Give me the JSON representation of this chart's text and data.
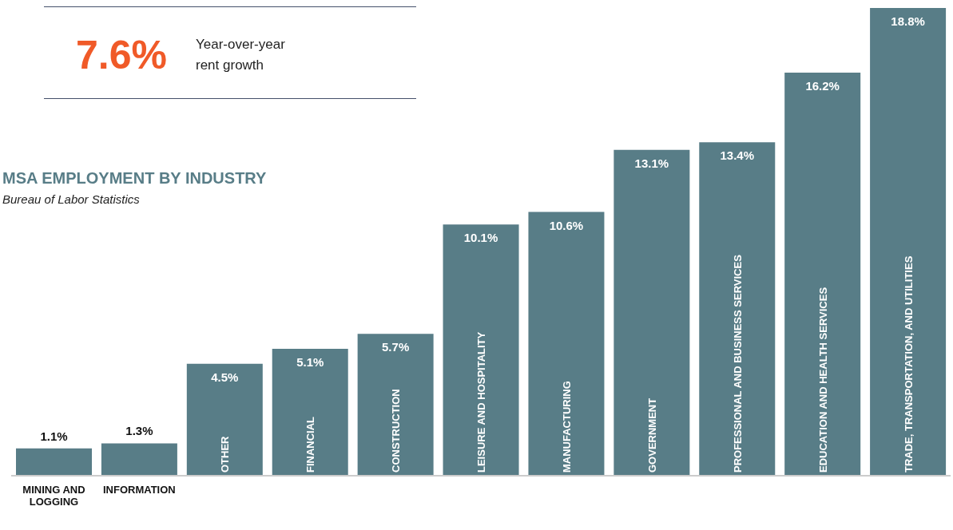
{
  "chart_data": {
    "type": "bar",
    "title": "MSA EMPLOYMENT BY INDUSTRY",
    "subtitle": "Bureau of Labor Statistics",
    "annotations": [
      "7.6%",
      "Year-over-year rent growth"
    ],
    "categories": [
      "MINING AND LOGGING",
      "INFORMATION",
      "OTHER",
      "FINANCIAL",
      "CONSTRUCTION",
      "LEISURE AND HOSPITALITY",
      "MANUFACTURING",
      "GOVERNMENT",
      "PROFESSIONAL AND BUSINESS SERVICES",
      "EDUCATION AND HEALTH SERVICES",
      "TRADE, TRANSPORTATION, AND UTILITIES"
    ],
    "values": [
      1.1,
      1.3,
      4.5,
      5.1,
      5.7,
      10.1,
      10.6,
      13.1,
      13.4,
      16.2,
      18.8
    ],
    "value_labels": [
      "1.1%",
      "1.3%",
      "4.5%",
      "5.1%",
      "5.7%",
      "10.1%",
      "10.6%",
      "13.1%",
      "13.4%",
      "16.2%",
      "18.8%"
    ],
    "color": "#587d87"
  }
}
